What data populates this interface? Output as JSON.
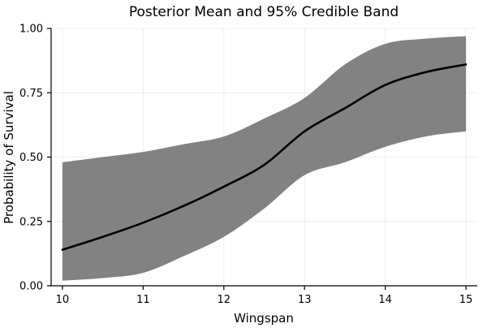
{
  "chart_data": {
    "type": "line",
    "title": "Posterior Mean and 95% Credible Band",
    "xlabel": "Wingspan",
    "ylabel": "Probability of Survival",
    "xlim": [
      9.86,
      15.14
    ],
    "ylim": [
      0,
      1
    ],
    "grid": true,
    "legend": "none",
    "x": [
      10,
      10.5,
      11,
      11.5,
      12,
      12.5,
      13,
      13.5,
      14,
      14.5,
      15
    ],
    "series": [
      {
        "name": "posterior_mean",
        "values": [
          0.14,
          0.19,
          0.245,
          0.31,
          0.385,
          0.47,
          0.6,
          0.69,
          0.78,
          0.83,
          0.86
        ]
      },
      {
        "name": "credible_lower_95",
        "values": [
          0.02,
          0.03,
          0.05,
          0.115,
          0.19,
          0.3,
          0.43,
          0.48,
          0.54,
          0.58,
          0.6
        ]
      },
      {
        "name": "credible_upper_95",
        "values": [
          0.48,
          0.5,
          0.52,
          0.55,
          0.58,
          0.65,
          0.73,
          0.86,
          0.94,
          0.96,
          0.97
        ]
      }
    ],
    "x_ticks": {
      "values": [
        10,
        11,
        12,
        13,
        14,
        15
      ],
      "labels": [
        "10",
        "11",
        "12",
        "13",
        "14",
        "15"
      ]
    },
    "y_ticks": {
      "values": [
        0,
        0.25,
        0.5,
        0.75,
        1
      ],
      "labels": [
        "0.00",
        "0.25",
        "0.50",
        "0.75",
        "1.00"
      ]
    },
    "colors": {
      "band": "#828282",
      "mean_line": "#000000",
      "grid": "#000000",
      "axis": "#000000",
      "background": "#ffffff"
    }
  }
}
